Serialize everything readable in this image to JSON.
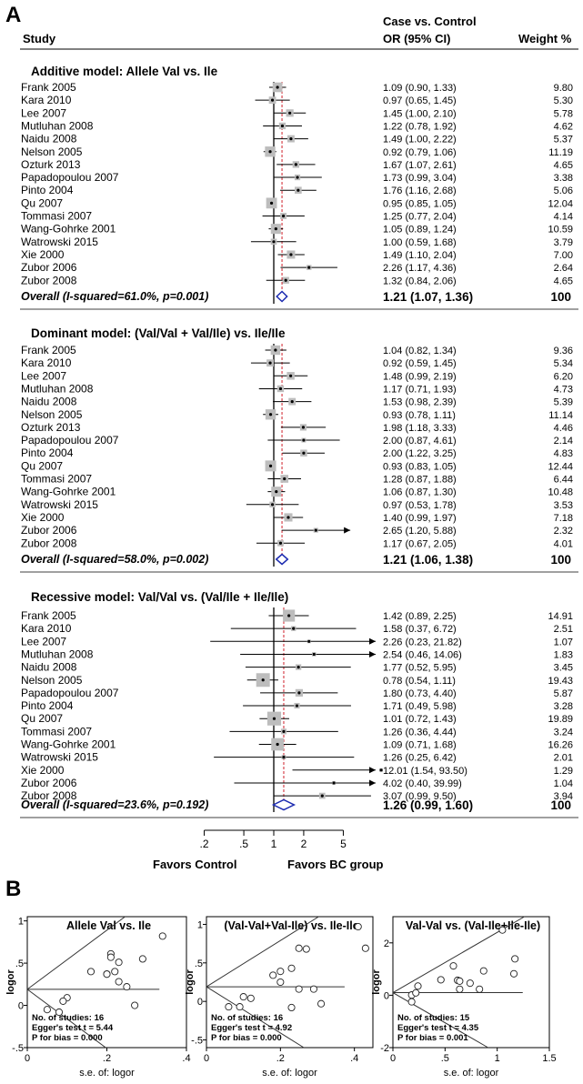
{
  "panel_a": {
    "label": "A",
    "header": {
      "study": "Study",
      "case_vs_control": "Case vs. Control",
      "or_ci": "OR (95% CI)",
      "weight": "Weight %"
    },
    "favors_left": "Favors Control",
    "favors_right": "Favors BC group"
  },
  "panel_b": {
    "label": "B"
  },
  "chart_data": [
    {
      "type": "forest",
      "title": "Additive model: Allele Val vs. Ile",
      "scale": "log",
      "studies": [
        {
          "study": "Frank  2005",
          "or": 1.09,
          "lower": 0.9,
          "upper": 1.33,
          "ci_text": "1.09 (0.90, 1.33)",
          "weight": "9.80"
        },
        {
          "study": "Kara  2010",
          "or": 0.97,
          "lower": 0.65,
          "upper": 1.45,
          "ci_text": "0.97 (0.65, 1.45)",
          "weight": "5.30"
        },
        {
          "study": "Lee  2007",
          "or": 1.45,
          "lower": 1.0,
          "upper": 2.1,
          "ci_text": "1.45 (1.00, 2.10)",
          "weight": "5.78"
        },
        {
          "study": "Mutluhan  2008",
          "or": 1.22,
          "lower": 0.78,
          "upper": 1.92,
          "ci_text": "1.22 (0.78, 1.92)",
          "weight": "4.62"
        },
        {
          "study": "Naidu  2008",
          "or": 1.49,
          "lower": 1.0,
          "upper": 2.22,
          "ci_text": "1.49 (1.00, 2.22)",
          "weight": "5.37"
        },
        {
          "study": "Nelson  2005",
          "or": 0.92,
          "lower": 0.79,
          "upper": 1.06,
          "ci_text": "0.92 (0.79, 1.06)",
          "weight": "11.19"
        },
        {
          "study": "Ozturk  2013",
          "or": 1.67,
          "lower": 1.07,
          "upper": 2.61,
          "ci_text": "1.67 (1.07, 2.61)",
          "weight": "4.65"
        },
        {
          "study": "Papadopoulou  2007",
          "or": 1.73,
          "lower": 0.99,
          "upper": 3.04,
          "ci_text": "1.73 (0.99, 3.04)",
          "weight": "3.38"
        },
        {
          "study": "Pinto  2004",
          "or": 1.76,
          "lower": 1.16,
          "upper": 2.68,
          "ci_text": "1.76 (1.16, 2.68)",
          "weight": "5.06"
        },
        {
          "study": "Qu  2007",
          "or": 0.95,
          "lower": 0.85,
          "upper": 1.05,
          "ci_text": "0.95 (0.85, 1.05)",
          "weight": "12.04"
        },
        {
          "study": "Tommasi  2007",
          "or": 1.25,
          "lower": 0.77,
          "upper": 2.04,
          "ci_text": "1.25 (0.77, 2.04)",
          "weight": "4.14"
        },
        {
          "study": "Wang-Gohrke  2001",
          "or": 1.05,
          "lower": 0.89,
          "upper": 1.24,
          "ci_text": "1.05 (0.89, 1.24)",
          "weight": "10.59"
        },
        {
          "study": "Watrowski  2015",
          "or": 1.0,
          "lower": 0.59,
          "upper": 1.68,
          "ci_text": "1.00 (0.59, 1.68)",
          "weight": "3.79"
        },
        {
          "study": "Xie  2000",
          "or": 1.49,
          "lower": 1.1,
          "upper": 2.04,
          "ci_text": "1.49 (1.10, 2.04)",
          "weight": "7.00"
        },
        {
          "study": "Zubor 2006",
          "or": 2.26,
          "lower": 1.17,
          "upper": 4.36,
          "ci_text": "2.26 (1.17, 4.36)",
          "weight": "2.64"
        },
        {
          "study": "Zubor 2008",
          "or": 1.32,
          "lower": 0.84,
          "upper": 2.06,
          "ci_text": "1.32 (0.84, 2.06)",
          "weight": "4.65"
        }
      ],
      "overall": {
        "label": "Overall  (I-squared=61.0%, p=0.001)",
        "or": 1.21,
        "lower": 1.07,
        "upper": 1.36,
        "ci_text": "1.21 (1.07, 1.36)",
        "weight": "100"
      }
    },
    {
      "type": "forest",
      "title": "Dominant model: (Val/Val + Val/Ile) vs. Ile/Ile",
      "scale": "log",
      "studies": [
        {
          "study": "Frank  2005",
          "or": 1.04,
          "lower": 0.82,
          "upper": 1.34,
          "ci_text": "1.04 (0.82, 1.34)",
          "weight": "9.36"
        },
        {
          "study": "Kara  2010",
          "or": 0.92,
          "lower": 0.59,
          "upper": 1.45,
          "ci_text": "0.92 (0.59, 1.45)",
          "weight": "5.34"
        },
        {
          "study": "Lee  2007",
          "or": 1.48,
          "lower": 0.99,
          "upper": 2.19,
          "ci_text": "1.48 (0.99, 2.19)",
          "weight": "6.20"
        },
        {
          "study": "Mutluhan  2008",
          "or": 1.17,
          "lower": 0.71,
          "upper": 1.93,
          "ci_text": "1.17 (0.71, 1.93)",
          "weight": "4.73"
        },
        {
          "study": "Naidu  2008",
          "or": 1.53,
          "lower": 0.98,
          "upper": 2.39,
          "ci_text": "1.53 (0.98, 2.39)",
          "weight": "5.39"
        },
        {
          "study": "Nelson  2005",
          "or": 0.93,
          "lower": 0.78,
          "upper": 1.11,
          "ci_text": "0.93 (0.78, 1.11)",
          "weight": "11.14"
        },
        {
          "study": "Ozturk  2013",
          "or": 1.98,
          "lower": 1.18,
          "upper": 3.33,
          "ci_text": "1.98 (1.18, 3.33)",
          "weight": "4.46"
        },
        {
          "study": "Papadopoulou  2007",
          "or": 2.0,
          "lower": 0.87,
          "upper": 4.61,
          "ci_text": "2.00 (0.87, 4.61)",
          "weight": "2.14"
        },
        {
          "study": "Pinto  2004",
          "or": 2.0,
          "lower": 1.22,
          "upper": 3.25,
          "ci_text": "2.00 (1.22, 3.25)",
          "weight": "4.83"
        },
        {
          "study": "Qu  2007",
          "or": 0.93,
          "lower": 0.83,
          "upper": 1.05,
          "ci_text": "0.93 (0.83, 1.05)",
          "weight": "12.44"
        },
        {
          "study": "Tommasi  2007",
          "or": 1.28,
          "lower": 0.87,
          "upper": 1.88,
          "ci_text": "1.28 (0.87, 1.88)",
          "weight": "6.44"
        },
        {
          "study": "Wang-Gohrke  2001",
          "or": 1.06,
          "lower": 0.87,
          "upper": 1.3,
          "ci_text": "1.06 (0.87, 1.30)",
          "weight": "10.48"
        },
        {
          "study": "Watrowski  2015",
          "or": 0.97,
          "lower": 0.53,
          "upper": 1.78,
          "ci_text": "0.97 (0.53, 1.78)",
          "weight": "3.53"
        },
        {
          "study": "Xie  2000",
          "or": 1.4,
          "lower": 0.99,
          "upper": 1.97,
          "ci_text": "1.40 (0.99, 1.97)",
          "weight": "7.18"
        },
        {
          "study": "Zubor 2006",
          "or": 2.65,
          "lower": 1.2,
          "upper": 5.88,
          "ci_text": "2.65 (1.20, 5.88)",
          "weight": "2.32",
          "arrow": true
        },
        {
          "study": "Zubor 2008",
          "or": 1.17,
          "lower": 0.67,
          "upper": 2.05,
          "ci_text": "1.17 (0.67, 2.05)",
          "weight": "4.01"
        }
      ],
      "overall": {
        "label": "Overall  (I-squared=58.0%, p=0.002)",
        "or": 1.21,
        "lower": 1.06,
        "upper": 1.38,
        "ci_text": "1.21 (1.06, 1.38)",
        "weight": "100"
      }
    },
    {
      "type": "forest",
      "title": "Recessive model: Val/Val vs. (Val/Ile + Ile/Ile)",
      "scale": "log",
      "xticks": [
        ".2",
        ".5",
        "1",
        "2",
        "5"
      ],
      "xtick_values": [
        0.2,
        0.5,
        1,
        2,
        5
      ],
      "studies": [
        {
          "study": "Frank  2005",
          "or": 1.42,
          "lower": 0.89,
          "upper": 2.25,
          "ci_text": "1.42 (0.89, 2.25)",
          "weight": "14.91"
        },
        {
          "study": "Kara  2010",
          "or": 1.58,
          "lower": 0.37,
          "upper": 6.72,
          "ci_text": "1.58 (0.37, 6.72)",
          "weight": "2.51"
        },
        {
          "study": "Lee  2007",
          "or": 2.26,
          "lower": 0.23,
          "upper": 21.82,
          "ci_text": "2.26 (0.23, 21.82)",
          "weight": "1.07"
        },
        {
          "study": "Mutluhan  2008",
          "or": 2.54,
          "lower": 0.46,
          "upper": 14.06,
          "ci_text": "2.54 (0.46, 14.06)",
          "weight": "1.83"
        },
        {
          "study": "Naidu  2008",
          "or": 1.77,
          "lower": 0.52,
          "upper": 5.95,
          "ci_text": "1.77 (0.52, 5.95)",
          "weight": "3.45"
        },
        {
          "study": "Nelson  2005",
          "or": 0.78,
          "lower": 0.54,
          "upper": 1.11,
          "ci_text": "0.78 (0.54, 1.11)",
          "weight": "19.43"
        },
        {
          "study": "Papadopoulou  2007",
          "or": 1.8,
          "lower": 0.73,
          "upper": 4.4,
          "ci_text": "1.80 (0.73, 4.40)",
          "weight": "5.87"
        },
        {
          "study": "Pinto  2004",
          "or": 1.71,
          "lower": 0.49,
          "upper": 5.98,
          "ci_text": "1.71 (0.49, 5.98)",
          "weight": "3.28"
        },
        {
          "study": "Qu  2007",
          "or": 1.01,
          "lower": 0.72,
          "upper": 1.43,
          "ci_text": "1.01 (0.72, 1.43)",
          "weight": "19.89"
        },
        {
          "study": "Tommasi  2007",
          "or": 1.26,
          "lower": 0.36,
          "upper": 4.44,
          "ci_text": "1.26 (0.36, 4.44)",
          "weight": "3.24"
        },
        {
          "study": "Wang-Gohrke  2001",
          "or": 1.09,
          "lower": 0.71,
          "upper": 1.68,
          "ci_text": "1.09 (0.71, 1.68)",
          "weight": "16.26"
        },
        {
          "study": "Watrowski  2015",
          "or": 1.26,
          "lower": 0.25,
          "upper": 6.42,
          "ci_text": "1.26 (0.25, 6.42)",
          "weight": "2.01"
        },
        {
          "study": "Xie  2000",
          "or": 12.01,
          "lower": 1.54,
          "upper": 93.5,
          "ci_text": "12.01 (1.54, 93.50)",
          "weight": "1.29",
          "arrow": true
        },
        {
          "study": "Zubor 2006",
          "or": 4.02,
          "lower": 0.4,
          "upper": 39.99,
          "ci_text": "4.02 (0.40, 39.99)",
          "weight": "1.04"
        },
        {
          "study": "Zubor 2008",
          "or": 3.07,
          "lower": 0.99,
          "upper": 9.5,
          "ci_text": "3.07 (0.99, 9.50)",
          "weight": "3.94"
        }
      ],
      "overall": {
        "label": "Overall  (I-squared=23.6%, p=0.192)",
        "or": 1.26,
        "lower": 0.99,
        "upper": 1.6,
        "ci_text": "1.26 (0.99, 1.60)",
        "weight": "100"
      }
    },
    {
      "type": "scatter",
      "title": "Allele Val vs. Ile",
      "xlabel": "s.e. of: logor",
      "ylabel": "logor",
      "xlim": [
        0,
        0.4
      ],
      "ylim": [
        -0.5,
        1.05
      ],
      "xticks": [
        "0",
        ".2",
        ".4"
      ],
      "xtick_values": [
        0,
        0.2,
        0.4
      ],
      "yticks": [
        "-.5",
        "0",
        ".5",
        "1"
      ],
      "ytick_values": [
        -0.5,
        0,
        0.5,
        1
      ],
      "slope": 3.5,
      "pooled": 0.19,
      "points": [
        [
          0.1,
          0.09
        ],
        [
          0.21,
          0.61
        ],
        [
          0.2,
          0.37
        ],
        [
          0.2,
          0.37
        ],
        [
          0.22,
          0.4
        ],
        [
          0.08,
          -0.08
        ],
        [
          0.23,
          0.51
        ],
        [
          0.29,
          0.55
        ],
        [
          0.21,
          0.57
        ],
        [
          0.05,
          -0.05
        ],
        [
          0.25,
          0.22
        ],
        [
          0.09,
          0.05
        ],
        [
          0.27,
          0.0
        ],
        [
          0.16,
          0.4
        ],
        [
          0.34,
          0.82
        ],
        [
          0.23,
          0.28
        ]
      ],
      "stats": {
        "n": "No. of studies: 16",
        "egger": "Egger's test t = 5.44",
        "p": "P for bias = 0.000"
      }
    },
    {
      "type": "scatter",
      "title": "(Val-Val+Val-Ile) vs. Ile-Ile",
      "xlabel": "s.e. of: logor",
      "ylabel": "logor",
      "xlim": [
        0,
        0.45
      ],
      "ylim": [
        -0.6,
        1.1
      ],
      "xticks": [
        "0",
        ".2",
        ".4"
      ],
      "xtick_values": [
        0,
        0.2,
        0.4
      ],
      "yticks": [
        "-.5",
        "0",
        ".5",
        "1"
      ],
      "ytick_values": [
        -0.5,
        0,
        0.5,
        1
      ],
      "slope": 3.0,
      "pooled": 0.19,
      "points": [
        [
          0.12,
          0.04
        ],
        [
          0.23,
          -0.08
        ],
        [
          0.2,
          0.39
        ],
        [
          0.25,
          0.16
        ],
        [
          0.23,
          0.43
        ],
        [
          0.09,
          -0.07
        ],
        [
          0.27,
          0.68
        ],
        [
          0.43,
          0.69
        ],
        [
          0.25,
          0.69
        ],
        [
          0.06,
          -0.07
        ],
        [
          0.2,
          0.25
        ],
        [
          0.1,
          0.06
        ],
        [
          0.31,
          -0.03
        ],
        [
          0.18,
          0.34
        ],
        [
          0.41,
          0.97
        ],
        [
          0.29,
          0.16
        ]
      ],
      "stats": {
        "n": "No. of studies: 16",
        "egger": "Egger's test t = 4.92",
        "p": "P for bias = 0.000"
      }
    },
    {
      "type": "scatter",
      "title": "Val-Val vs. (Val-Ile+Ile-Ile)",
      "xlabel": "s.e. of: logor",
      "ylabel": "logor",
      "xlim": [
        0,
        1.5
      ],
      "ylim": [
        -2,
        3
      ],
      "xticks": [
        "0",
        ".5",
        "1",
        "1.5"
      ],
      "xtick_values": [
        0,
        0.5,
        1,
        1.5
      ],
      "yticks": [
        "-2",
        "0",
        "2"
      ],
      "ytick_values": [
        -2,
        0,
        2
      ],
      "slope": 2.3,
      "pooled": 0.1,
      "points": [
        [
          0.24,
          0.35
        ],
        [
          0.74,
          0.46
        ],
        [
          1.16,
          0.82
        ],
        [
          0.87,
          0.93
        ],
        [
          0.62,
          0.57
        ],
        [
          0.18,
          -0.25
        ],
        [
          0.46,
          0.59
        ],
        [
          0.64,
          0.54
        ],
        [
          0.18,
          0.01
        ],
        [
          0.64,
          0.23
        ],
        [
          0.22,
          0.09
        ],
        [
          0.83,
          0.23
        ],
        [
          1.05,
          2.49
        ],
        [
          1.17,
          1.39
        ],
        [
          0.58,
          1.12
        ]
      ],
      "stats": {
        "n": "No. of studies: 15",
        "egger": "Egger's test t = 4.35",
        "p": "P for bias = 0.001"
      }
    }
  ]
}
